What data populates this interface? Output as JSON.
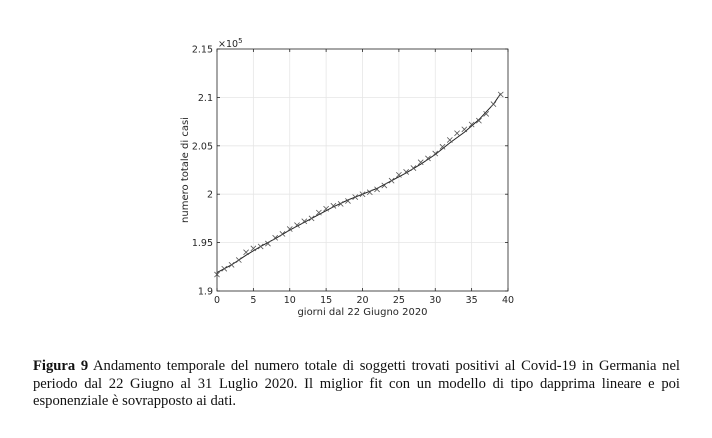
{
  "chart_data": {
    "type": "scatter",
    "xlabel": "giorni dal 22 Giugno 2020",
    "ylabel": "numero totale di casi",
    "y_multiplier": "×10",
    "y_multiplier_exp": "5",
    "xlim": [
      0,
      40
    ],
    "ylim": [
      1.9,
      2.15
    ],
    "x_ticks": [
      0,
      5,
      10,
      15,
      20,
      25,
      30,
      35,
      40
    ],
    "y_ticks": [
      1.9,
      1.95,
      2.0,
      2.05,
      2.1,
      2.15
    ],
    "x_tick_labels": [
      "0",
      "5",
      "10",
      "15",
      "20",
      "25",
      "30",
      "35",
      "40"
    ],
    "y_tick_labels": [
      "1.9",
      "1.95",
      "2",
      "2.05",
      "2.1",
      "2.15"
    ],
    "grid": true,
    "series": [
      {
        "marker": "x",
        "x": [
          0,
          1,
          2,
          3,
          4,
          5,
          6,
          7,
          8,
          9,
          10,
          11,
          12,
          13,
          14,
          15,
          16,
          17,
          18,
          19,
          20,
          21,
          22,
          23,
          24,
          25,
          26,
          27,
          28,
          29,
          30,
          31,
          32,
          33,
          34,
          35,
          36,
          37,
          38,
          39
        ],
        "y": [
          1.917,
          1.923,
          1.927,
          1.932,
          1.94,
          1.944,
          1.946,
          1.949,
          1.955,
          1.959,
          1.964,
          1.968,
          1.972,
          1.975,
          1.981,
          1.985,
          1.988,
          1.99,
          1.993,
          1.997,
          2.0,
          2.002,
          2.005,
          2.009,
          2.014,
          2.02,
          2.023,
          2.027,
          2.033,
          2.037,
          2.042,
          2.049,
          2.056,
          2.063,
          2.067,
          2.072,
          2.076,
          2.083,
          2.093,
          2.103
        ]
      },
      {
        "style": "line",
        "x": [
          0,
          2,
          4,
          6,
          8,
          10,
          12,
          14,
          16,
          18,
          20,
          22,
          24,
          26,
          28,
          30,
          32,
          34,
          36,
          38,
          39
        ],
        "y": [
          1.919,
          1.927,
          1.937,
          1.946,
          1.954,
          1.963,
          1.971,
          1.979,
          1.987,
          1.994,
          2.0,
          2.006,
          2.014,
          2.022,
          2.031,
          2.041,
          2.053,
          2.064,
          2.077,
          2.093,
          2.104
        ]
      }
    ]
  },
  "caption": {
    "label": "Figura 9",
    "text": " Andamento temporale del numero totale di soggetti trovati positivi al Covid-19 in Germania nel periodo dal 22 Giugno al 31 Luglio 2020. Il miglior fit con un modello di tipo dapprima lineare e poi esponenziale è sovrapposto ai dati."
  }
}
